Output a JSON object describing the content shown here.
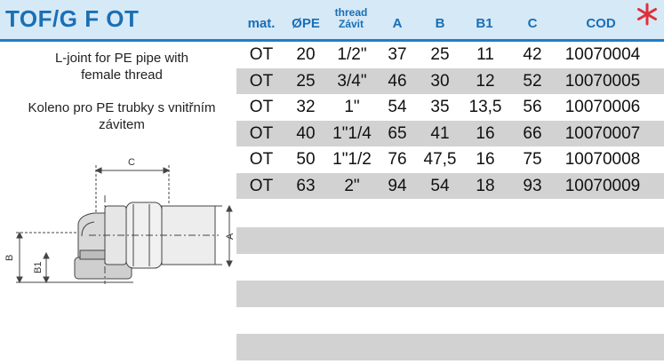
{
  "header": {
    "title": "TOF/G F OT",
    "columns": {
      "mat": "mat.",
      "pe": "ØPE",
      "thread_line1": "thread",
      "thread_line2": "Závit",
      "a": "A",
      "b": "B",
      "b1": "B1",
      "c": "C",
      "cod": "COD"
    },
    "star_color": "#e0303a",
    "accent": "#1a6fb5"
  },
  "description": {
    "en_line1": "L-joint for PE pipe with",
    "en_line2": "female thread",
    "cz_line1": "Koleno pro PE trubky s vnitřním",
    "cz_line2": "závitem"
  },
  "drawing": {
    "label_c": "C",
    "label_a": "A",
    "label_b": "B",
    "label_b1": "B1"
  },
  "rows": [
    {
      "mat": "OT",
      "pe": "20",
      "thread": "1/2\"",
      "a": "37",
      "b": "25",
      "b1": "11",
      "c": "42",
      "cod": "10070004"
    },
    {
      "mat": "OT",
      "pe": "25",
      "thread": "3/4\"",
      "a": "46",
      "b": "30",
      "b1": "12",
      "c": "52",
      "cod": "10070005"
    },
    {
      "mat": "OT",
      "pe": "32",
      "thread": "1\"",
      "a": "54",
      "b": "35",
      "b1": "13,5",
      "c": "56",
      "cod": "10070006"
    },
    {
      "mat": "OT",
      "pe": "40",
      "thread": "1\"1/4",
      "a": "65",
      "b": "41",
      "b1": "16",
      "c": "66",
      "cod": "10070007"
    },
    {
      "mat": "OT",
      "pe": "50",
      "thread": "1\"1/2",
      "a": "76",
      "b": "47,5",
      "b1": "16",
      "c": "75",
      "cod": "10070008"
    },
    {
      "mat": "OT",
      "pe": "63",
      "thread": "2\"",
      "a": "94",
      "b": "54",
      "b1": "18",
      "c": "93",
      "cod": "10070009"
    }
  ]
}
